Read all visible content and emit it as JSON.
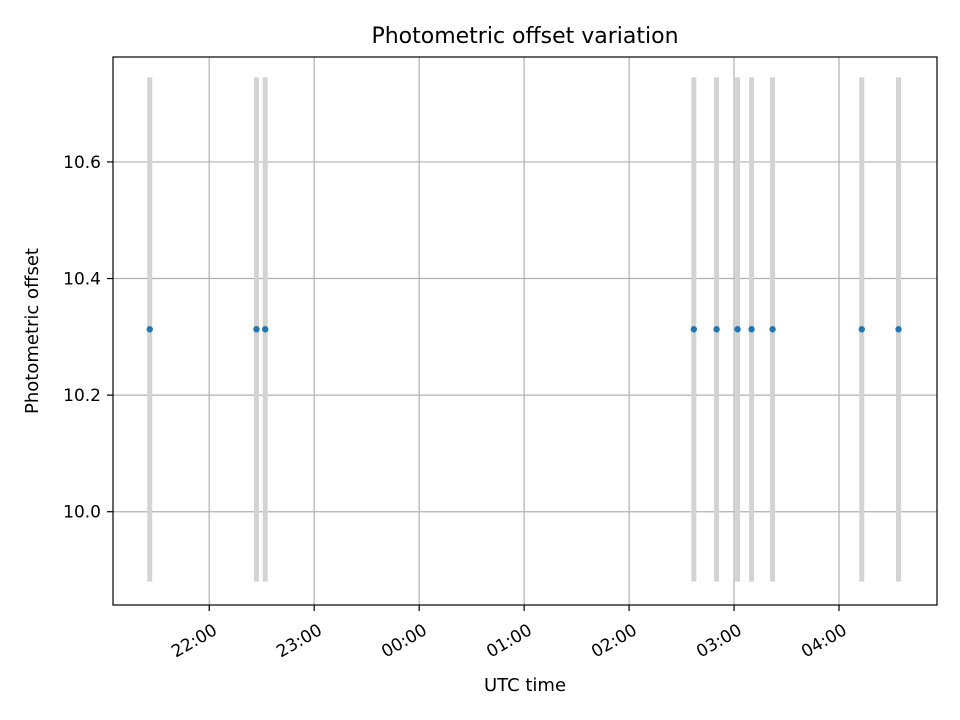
{
  "chart_data": {
    "type": "scatter",
    "title": "Photometric offset variation",
    "xlabel": "UTC time",
    "ylabel": "Photometric offset",
    "x_type": "time",
    "xlim": [
      "21:05",
      "04:56"
    ],
    "ylim": [
      9.84,
      10.78
    ],
    "grid": true,
    "x_ticks": [
      "22:00",
      "23:00",
      "00:00",
      "01:00",
      "02:00",
      "03:00",
      "04:00"
    ],
    "y_ticks": [
      "10.0",
      "10.2",
      "10.4",
      "10.6"
    ],
    "points": [
      {
        "x": "21:26",
        "y": 10.313
      },
      {
        "x": "22:27",
        "y": 10.313
      },
      {
        "x": "22:32",
        "y": 10.313
      },
      {
        "x": "02:37",
        "y": 10.313
      },
      {
        "x": "02:50",
        "y": 10.313
      },
      {
        "x": "03:02",
        "y": 10.313
      },
      {
        "x": "03:10",
        "y": 10.313
      },
      {
        "x": "03:22",
        "y": 10.313
      },
      {
        "x": "04:13",
        "y": 10.313
      },
      {
        "x": "04:34",
        "y": 10.313
      }
    ],
    "vertical_lines_yrange": [
      9.88,
      10.745
    ],
    "colors": {
      "points": "#1f77b4",
      "vertical_lines": "#d3d3d3",
      "grid": "#b0b0b0"
    }
  }
}
